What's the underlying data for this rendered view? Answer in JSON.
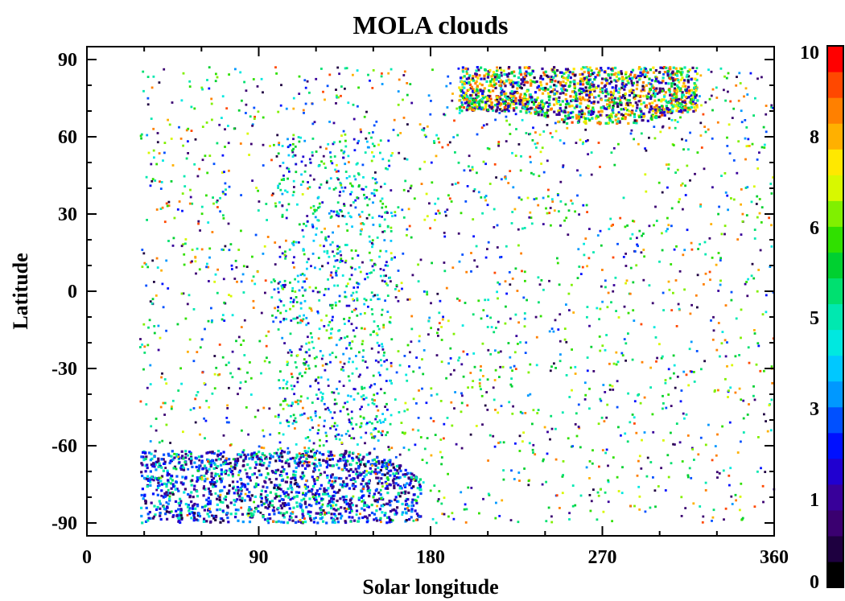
{
  "chart_data": {
    "type": "scatter",
    "title": "MOLA clouds",
    "xlabel": "Solar longitude",
    "ylabel": "Latitude",
    "xlim": [
      0,
      360
    ],
    "ylim": [
      -95,
      95
    ],
    "x_ticks": [
      0,
      90,
      180,
      270,
      360
    ],
    "y_ticks": [
      -90,
      -60,
      -30,
      0,
      30,
      60,
      90
    ],
    "x_minor_step": 30,
    "y_minor_step": 10,
    "grid": false,
    "data_extent": {
      "ls_start": 28,
      "ls_end": 360,
      "lat_min": -90,
      "lat_max": 87
    },
    "regions": [
      {
        "label": "south-polar-cloud-band",
        "ls": [
          28,
          175
        ],
        "lat": [
          -90,
          -60
        ],
        "density": "very-high",
        "dominant_values": [
          1,
          2,
          3,
          5
        ]
      },
      {
        "label": "north-polar-cloud-band",
        "ls": [
          195,
          320
        ],
        "lat": [
          65,
          87
        ],
        "density": "very-high",
        "dominant_values": [
          1,
          2,
          5,
          6,
          8,
          9
        ]
      },
      {
        "label": "aphelion-cloud-belt",
        "ls": [
          100,
          160
        ],
        "lat": [
          -60,
          60
        ],
        "density": "medium",
        "dominant_values": [
          2,
          4,
          5,
          6
        ]
      },
      {
        "label": "background-scatter",
        "ls": [
          28,
          360
        ],
        "lat": [
          -90,
          87
        ],
        "density": "low",
        "dominant_values": [
          1,
          3,
          5,
          6,
          7,
          9
        ]
      }
    ],
    "colorbar": {
      "range": [
        0,
        10
      ],
      "tick_labels": [
        "0",
        "1",
        "3",
        "5",
        "6",
        "8",
        "10"
      ],
      "colors": [
        "#000000",
        "#1e0040",
        "#3a0070",
        "#38009a",
        "#2000d0",
        "#0010ff",
        "#0050ff",
        "#0098ff",
        "#00c8ff",
        "#00e8e0",
        "#00e8b0",
        "#00e070",
        "#00d030",
        "#30e000",
        "#80f000",
        "#d8f800",
        "#ffe800",
        "#ffb000",
        "#ff8000",
        "#ff4800",
        "#ff0000"
      ],
      "position": "right"
    }
  }
}
